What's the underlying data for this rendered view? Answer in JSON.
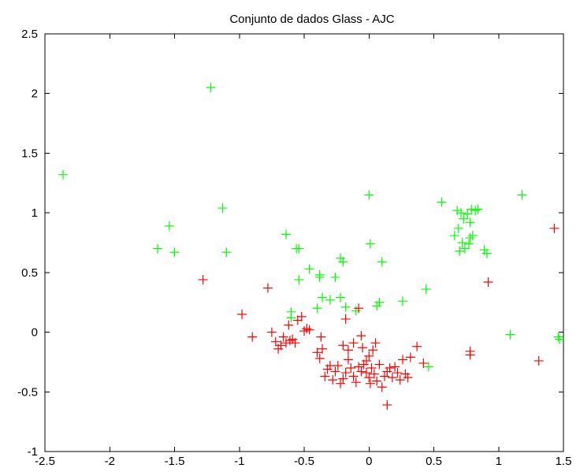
{
  "chart_data": {
    "type": "scatter",
    "title": "Conjunto de dados Glass - AJC",
    "xlabel": "",
    "ylabel": "",
    "xlim": [
      -2.5,
      1.5
    ],
    "ylim": [
      -1,
      2.5
    ],
    "x_ticks": [
      "-2.5",
      "-2",
      "-1.5",
      "-1",
      "-0.5",
      "0",
      "0.5",
      "1",
      "1.5"
    ],
    "y_ticks": [
      "-1",
      "-0.5",
      "0",
      "0.5",
      "1",
      "1.5",
      "2",
      "2.5"
    ],
    "grid": false,
    "marker": "+",
    "series": [
      {
        "color": "#00ff00",
        "points": [
          [
            -2.36,
            1.32
          ],
          [
            -1.22,
            2.05
          ],
          [
            -1.63,
            0.7
          ],
          [
            -1.54,
            0.89
          ],
          [
            -1.5,
            0.67
          ],
          [
            -1.13,
            1.04
          ],
          [
            -1.1,
            0.67
          ],
          [
            -0.64,
            0.82
          ],
          [
            -0.56,
            0.7
          ],
          [
            -0.54,
            0.7
          ],
          [
            -0.54,
            0.44
          ],
          [
            -0.46,
            0.53
          ],
          [
            -0.38,
            0.48
          ],
          [
            -0.38,
            0.46
          ],
          [
            -0.36,
            0.29
          ],
          [
            -0.3,
            0.27
          ],
          [
            -0.26,
            0.46
          ],
          [
            -0.22,
            0.62
          ],
          [
            -0.2,
            0.59
          ],
          [
            -0.22,
            0.29
          ],
          [
            -0.18,
            0.21
          ],
          [
            -0.1,
            0.18
          ],
          [
            -0.6,
            0.17
          ],
          [
            -0.6,
            0.12
          ],
          [
            -0.4,
            0.2
          ],
          [
            0.0,
            1.15
          ],
          [
            0.01,
            0.74
          ],
          [
            0.1,
            0.59
          ],
          [
            0.06,
            0.22
          ],
          [
            0.08,
            0.25
          ],
          [
            0.26,
            0.26
          ],
          [
            0.44,
            0.36
          ],
          [
            0.46,
            -0.29
          ],
          [
            0.56,
            1.09
          ],
          [
            0.68,
            1.02
          ],
          [
            0.69,
            0.87
          ],
          [
            0.71,
            1.0
          ],
          [
            0.72,
            0.75
          ],
          [
            0.66,
            0.81
          ],
          [
            0.73,
            0.95
          ],
          [
            0.76,
            0.99
          ],
          [
            0.78,
            0.79
          ],
          [
            0.79,
            1.03
          ],
          [
            0.8,
            0.81
          ],
          [
            0.82,
            1.02
          ],
          [
            0.84,
            1.03
          ],
          [
            0.78,
            0.92
          ],
          [
            0.77,
            0.74
          ],
          [
            0.74,
            0.7
          ],
          [
            0.7,
            0.68
          ],
          [
            0.89,
            0.69
          ],
          [
            0.91,
            0.66
          ],
          [
            1.18,
            1.15
          ],
          [
            1.09,
            -0.02
          ],
          [
            1.46,
            -0.04
          ],
          [
            1.47,
            -0.06
          ]
        ]
      },
      {
        "color": "#ff0000",
        "points": [
          [
            -1.28,
            0.44
          ],
          [
            -0.98,
            0.15
          ],
          [
            -0.9,
            -0.04
          ],
          [
            -0.78,
            0.37
          ],
          [
            -0.75,
            0.0
          ],
          [
            -0.72,
            -0.08
          ],
          [
            -0.7,
            -0.14
          ],
          [
            -0.68,
            -0.11
          ],
          [
            -0.66,
            -0.04
          ],
          [
            -0.64,
            -0.09
          ],
          [
            -0.62,
            0.06
          ],
          [
            -0.61,
            -0.07
          ],
          [
            -0.59,
            -0.06
          ],
          [
            -0.57,
            -0.09
          ],
          [
            -0.55,
            0.1
          ],
          [
            -0.52,
            0.13
          ],
          [
            -0.5,
            0.01
          ],
          [
            -0.48,
            0.03
          ],
          [
            -0.46,
            0.02
          ],
          [
            -0.4,
            -0.17
          ],
          [
            -0.38,
            -0.22
          ],
          [
            -0.36,
            -0.14
          ],
          [
            -0.37,
            -0.04
          ],
          [
            -0.34,
            -0.37
          ],
          [
            -0.32,
            -0.31
          ],
          [
            -0.3,
            -0.28
          ],
          [
            -0.28,
            -0.4
          ],
          [
            -0.26,
            -0.33
          ],
          [
            -0.24,
            -0.28
          ],
          [
            -0.22,
            -0.43
          ],
          [
            -0.2,
            -0.39
          ],
          [
            -0.18,
            -0.34
          ],
          [
            -0.16,
            -0.23
          ],
          [
            -0.14,
            -0.3
          ],
          [
            -0.12,
            -0.37
          ],
          [
            -0.1,
            -0.42
          ],
          [
            -0.08,
            -0.29
          ],
          [
            -0.06,
            -0.33
          ],
          [
            -0.04,
            -0.27
          ],
          [
            -0.02,
            -0.34
          ],
          [
            0.0,
            -0.38
          ],
          [
            0.01,
            -0.43
          ],
          [
            0.02,
            -0.3
          ],
          [
            0.04,
            -0.35
          ],
          [
            0.06,
            -0.41
          ],
          [
            0.08,
            -0.27
          ],
          [
            0.1,
            -0.46
          ],
          [
            0.12,
            -0.37
          ],
          [
            0.14,
            -0.33
          ],
          [
            0.16,
            -0.3
          ],
          [
            0.18,
            -0.38
          ],
          [
            0.2,
            -0.29
          ],
          [
            0.22,
            -0.34
          ],
          [
            0.24,
            -0.4
          ],
          [
            0.26,
            -0.23
          ],
          [
            0.28,
            -0.35
          ],
          [
            0.3,
            -0.38
          ],
          [
            0.32,
            -0.21
          ],
          [
            -0.05,
            -0.13
          ],
          [
            0.0,
            -0.2
          ],
          [
            -0.2,
            -0.11
          ],
          [
            -0.18,
            0.11
          ],
          [
            -0.16,
            -0.15
          ],
          [
            -0.12,
            -0.09
          ],
          [
            -0.08,
            0.2
          ],
          [
            -0.06,
            -0.03
          ],
          [
            0.05,
            -0.09
          ],
          [
            0.03,
            -0.15
          ],
          [
            -0.02,
            -0.24
          ],
          [
            0.14,
            -0.61
          ],
          [
            0.37,
            -0.12
          ],
          [
            0.42,
            -0.26
          ],
          [
            0.78,
            -0.16
          ],
          [
            0.78,
            -0.19
          ],
          [
            0.92,
            0.42
          ],
          [
            1.31,
            -0.24
          ],
          [
            1.43,
            0.87
          ]
        ]
      }
    ]
  }
}
